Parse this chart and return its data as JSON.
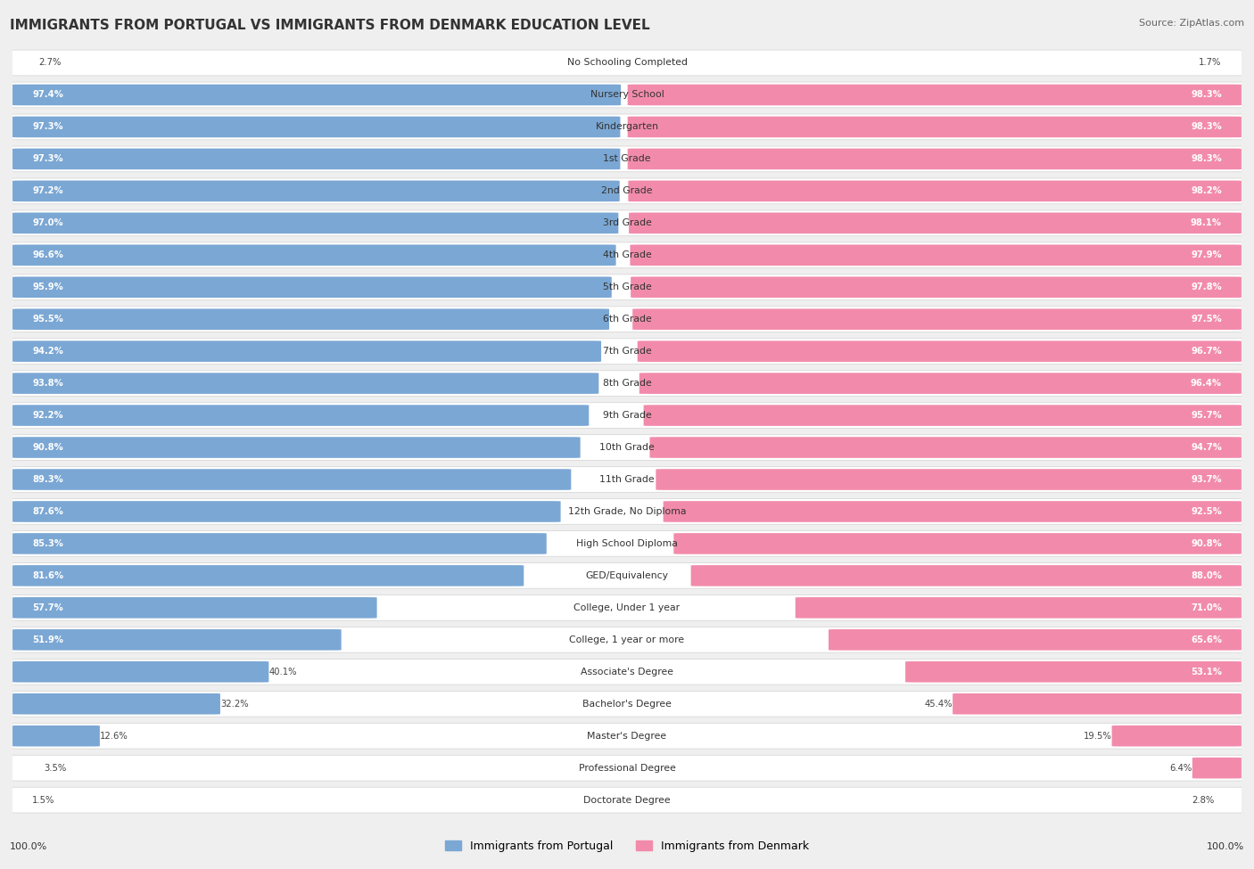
{
  "title": "IMMIGRANTS FROM PORTUGAL VS IMMIGRANTS FROM DENMARK EDUCATION LEVEL",
  "source": "Source: ZipAtlas.com",
  "categories": [
    "No Schooling Completed",
    "Nursery School",
    "Kindergarten",
    "1st Grade",
    "2nd Grade",
    "3rd Grade",
    "4th Grade",
    "5th Grade",
    "6th Grade",
    "7th Grade",
    "8th Grade",
    "9th Grade",
    "10th Grade",
    "11th Grade",
    "12th Grade, No Diploma",
    "High School Diploma",
    "GED/Equivalency",
    "College, Under 1 year",
    "College, 1 year or more",
    "Associate's Degree",
    "Bachelor's Degree",
    "Master's Degree",
    "Professional Degree",
    "Doctorate Degree"
  ],
  "portugal_values": [
    2.7,
    97.4,
    97.3,
    97.3,
    97.2,
    97.0,
    96.6,
    95.9,
    95.5,
    94.2,
    93.8,
    92.2,
    90.8,
    89.3,
    87.6,
    85.3,
    81.6,
    57.7,
    51.9,
    40.1,
    32.2,
    12.6,
    3.5,
    1.5
  ],
  "denmark_values": [
    1.7,
    98.3,
    98.3,
    98.3,
    98.2,
    98.1,
    97.9,
    97.8,
    97.5,
    96.7,
    96.4,
    95.7,
    94.7,
    93.7,
    92.5,
    90.8,
    88.0,
    71.0,
    65.6,
    53.1,
    45.4,
    19.5,
    6.4,
    2.8
  ],
  "portugal_color": "#7ba7d4",
  "denmark_color": "#f28bab",
  "background_color": "#efefef",
  "row_bg_even": "#ffffff",
  "row_bg_odd": "#f7f7f7",
  "legend_portugal": "Immigrants from Portugal",
  "legend_denmark": "Immigrants from Denmark",
  "axis_label_100": "100.0%",
  "title_fontsize": 11,
  "source_fontsize": 8,
  "label_fontsize": 7.8,
  "value_fontsize": 7.2
}
